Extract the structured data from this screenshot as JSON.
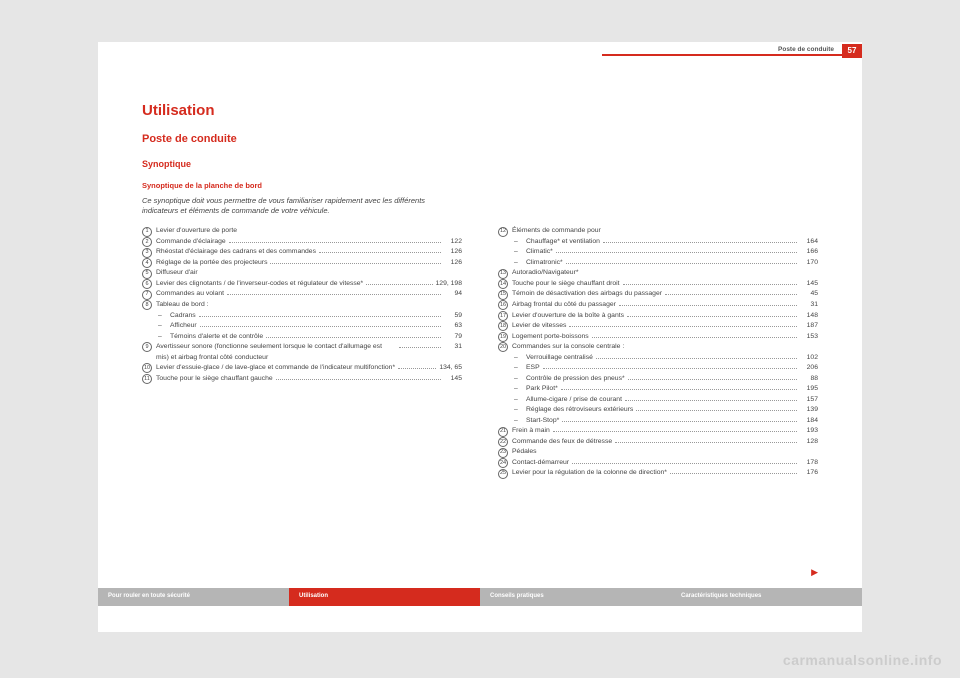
{
  "header": {
    "section": "Poste de conduite",
    "page_num": "57"
  },
  "h1": "Utilisation",
  "h2": "Poste de conduite",
  "h3": "Synoptique",
  "h4": "Synoptique de la planche de bord",
  "intro": "Ce synoptique doit vous permettre de vous familiariser rapidement avec les différents indicateurs et éléments de commande de votre véhicule.",
  "left": [
    {
      "n": "1",
      "t": "Levier d'ouverture de porte",
      "p": ""
    },
    {
      "n": "2",
      "t": "Commande d'éclairage",
      "p": "122"
    },
    {
      "n": "3",
      "t": "Rhéostat d'éclairage des cadrans et des commandes",
      "p": "126"
    },
    {
      "n": "4",
      "t": "Réglage de la portée des projecteurs",
      "p": "126"
    },
    {
      "n": "5",
      "t": "Diffuseur d'air",
      "p": ""
    },
    {
      "n": "6",
      "t": "Levier des clignotants / de l'inverseur-codes et régulateur de vitesse*",
      "p": "129, 198"
    },
    {
      "n": "7",
      "t": "Commandes au volant",
      "p": "94"
    },
    {
      "n": "8",
      "t": "Tableau de bord :",
      "p": ""
    },
    {
      "sub": true,
      "t": "Cadrans",
      "p": "59"
    },
    {
      "sub": true,
      "t": "Afficheur",
      "p": "63"
    },
    {
      "sub": true,
      "t": "Témoins d'alerte et de contrôle",
      "p": "79"
    },
    {
      "n": "9",
      "t": "Avertisseur sonore (fonctionne seulement lorsque le contact d'allumage est mis) et airbag frontal côté conducteur",
      "p": "31"
    },
    {
      "n": "10",
      "t": "Levier d'essuie-glace / de lave-glace et commande de l'indicateur multifonction*",
      "p": "134, 65"
    },
    {
      "n": "11",
      "t": "Touche pour le siège chauffant gauche",
      "p": "145"
    }
  ],
  "right": [
    {
      "n": "12",
      "t": "Éléments de commande pour",
      "p": ""
    },
    {
      "sub": true,
      "t": "Chauffage* et ventilation",
      "p": "164"
    },
    {
      "sub": true,
      "t": "Climatic*",
      "p": "166"
    },
    {
      "sub": true,
      "t": "Climatronic*",
      "p": "170"
    },
    {
      "n": "13",
      "t": "Autoradio/Navigateur*",
      "p": ""
    },
    {
      "n": "14",
      "t": "Touche pour le siège chauffant droit",
      "p": "145"
    },
    {
      "n": "15",
      "t": "Témoin de désactivation des airbags du passager",
      "p": "45"
    },
    {
      "n": "16",
      "t": "Airbag frontal du côté du passager",
      "p": "31"
    },
    {
      "n": "17",
      "t": "Levier d'ouverture de la boîte à gants",
      "p": "148"
    },
    {
      "n": "18",
      "t": "Levier de vitesses",
      "p": "187"
    },
    {
      "n": "19",
      "t": "Logement porte-boissons",
      "p": "153"
    },
    {
      "n": "20",
      "t": "Commandes sur la console centrale :",
      "p": ""
    },
    {
      "sub": true,
      "t": "Verrouillage centralisé",
      "p": "102"
    },
    {
      "sub": true,
      "t": "ESP",
      "p": "206"
    },
    {
      "sub": true,
      "t": "Contrôle de pression des pneus*",
      "p": "88"
    },
    {
      "sub": true,
      "t": "Park Pilot*",
      "p": "195"
    },
    {
      "sub": true,
      "t": "Allume-cigare / prise de courant",
      "p": "157"
    },
    {
      "sub": true,
      "t": "Réglage des rétroviseurs extérieurs",
      "p": "139"
    },
    {
      "sub": true,
      "t": "Start-Stop*",
      "p": "184"
    },
    {
      "n": "21",
      "t": "Frein à main",
      "p": "193"
    },
    {
      "n": "22",
      "t": "Commande des feux de détresse",
      "p": "128"
    },
    {
      "n": "23",
      "t": "Pédales",
      "p": ""
    },
    {
      "n": "24",
      "t": "Contact-démarreur",
      "p": "178"
    },
    {
      "n": "25",
      "t": "Levier pour la régulation de la colonne de direction*",
      "p": "176"
    }
  ],
  "footer": [
    {
      "t": "Pour rouler en toute sécurité",
      "bg": "#b5b5b5"
    },
    {
      "t": "Utilisation",
      "bg": "#d52b1e"
    },
    {
      "t": "Conseils pratiques",
      "bg": "#b5b5b5"
    },
    {
      "t": "Caractéristiques techniques",
      "bg": "#b5b5b5"
    }
  ],
  "watermark": "carmanualsonline.info"
}
